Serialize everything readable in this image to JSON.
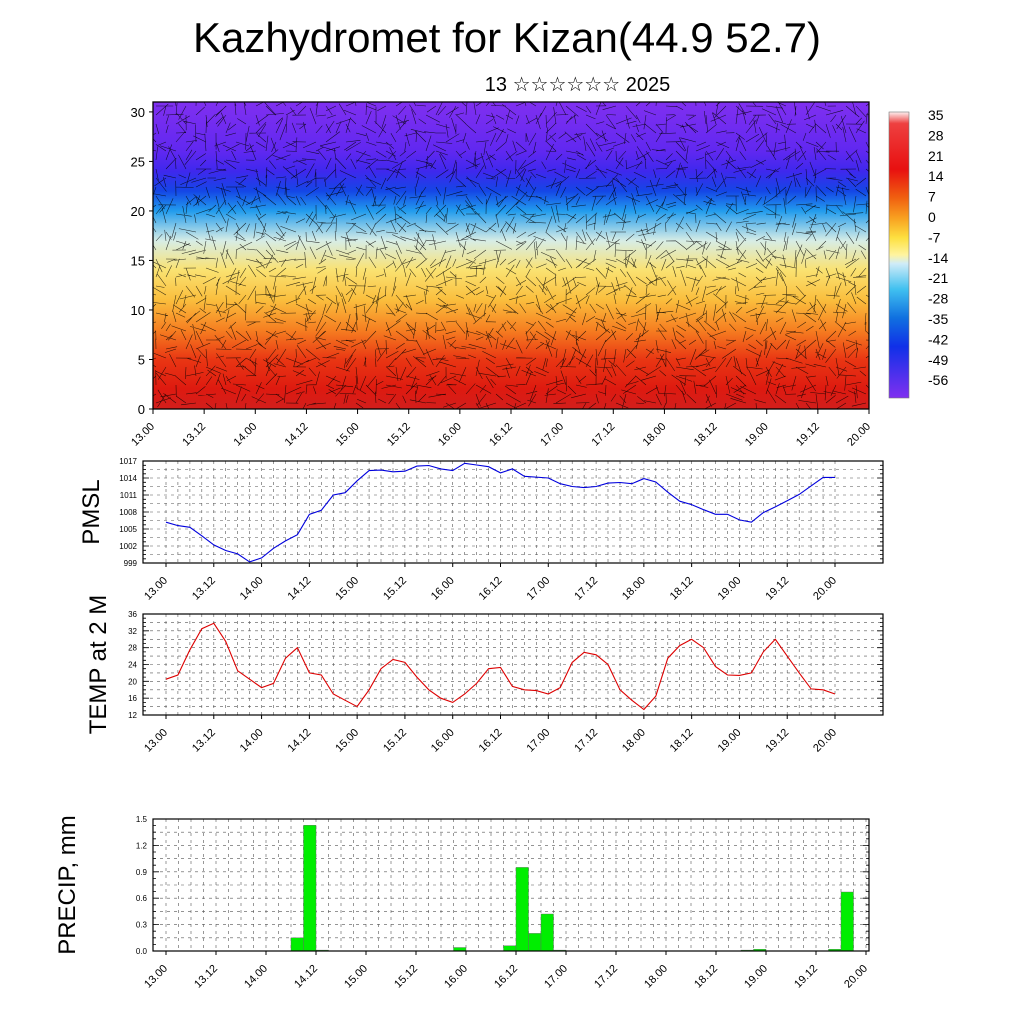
{
  "title": "Kazhydromet for Kizan(44.9 52.7)",
  "subtitle": "13 ☆☆☆☆☆☆ 2025",
  "colors": {
    "pmsl": "#0000dd",
    "temp": "#dd0000",
    "precip": "#00ee00"
  },
  "chart_data": [
    {
      "type": "heatmap",
      "name": "cross-section",
      "xlabel": "",
      "ylabel": "",
      "x_ticks": [
        "13.00",
        "13.12",
        "14.00",
        "14.12",
        "15.00",
        "15.12",
        "16.00",
        "16.12",
        "17.00",
        "17.12",
        "18.00",
        "18.12",
        "19.00",
        "19.12",
        "20.00"
      ],
      "y_ticks": [
        "0",
        "5",
        "10",
        "15",
        "20",
        "25",
        "30"
      ],
      "ylim": [
        0,
        31
      ],
      "colorbar_labels": [
        "35",
        "28",
        "21",
        "14",
        "7",
        "0",
        "-7",
        "-14",
        "-21",
        "-28",
        "-35",
        "-42",
        "-49",
        "-56"
      ],
      "temperature_profile_by_height": {
        "heights": [
          0,
          2,
          5,
          8,
          11,
          14,
          17,
          20,
          22,
          24,
          26,
          28,
          31
        ],
        "values": [
          30,
          27,
          22,
          13,
          3,
          -6,
          -14,
          -30,
          -42,
          -52,
          -55,
          -57,
          -60
        ]
      },
      "overlay": "wind vectors"
    },
    {
      "type": "line",
      "name": "PMSL",
      "ylabel": "PMSL",
      "x_ticks": [
        "13.00",
        "13.12",
        "14.00",
        "14.12",
        "15.00",
        "15.12",
        "16.00",
        "16.12",
        "17.00",
        "17.12",
        "18.00",
        "18.12",
        "19.00",
        "19.12",
        "20.00"
      ],
      "y_ticks": [
        "999",
        "1002",
        "1005",
        "1008",
        "1011",
        "1014",
        "1017"
      ],
      "ylim": [
        999,
        1017
      ],
      "x_hours": [
        0,
        3,
        6,
        9,
        12,
        15,
        18,
        21,
        24,
        27,
        30,
        33,
        36,
        39,
        42,
        45,
        48,
        51,
        54,
        57,
        60,
        63,
        66,
        69,
        72,
        75,
        78,
        81,
        84,
        87,
        90,
        96,
        99,
        102,
        105,
        108,
        111,
        114,
        117,
        120,
        123,
        126,
        129,
        132,
        135,
        138,
        141,
        144,
        147,
        150,
        153,
        156,
        159,
        162,
        165,
        168
      ],
      "values": [
        1006.2,
        1005.6,
        1005.3,
        1003.8,
        1002.2,
        1001.2,
        1000.6,
        999.2,
        999.9,
        1001.6,
        1002.9,
        1004,
        1007.6,
        1008.3,
        1011,
        1011.4,
        1013.5,
        1015.3,
        1015.4,
        1015.1,
        1015.2,
        1016.1,
        1016.2,
        1015.6,
        1015.3,
        1016.6,
        1016.3,
        1016,
        1014.9,
        1015.6,
        1014.3,
        1014,
        1013,
        1012.5,
        1012.3,
        1012.5,
        1013.1,
        1013.2,
        1013,
        1013.9,
        1013.3,
        1011.5,
        1009.9,
        1009.3,
        1008.4,
        1007.6,
        1007.6,
        1006.6,
        1006.2,
        1007.9,
        1008.9,
        1010,
        1011.1,
        1012.6,
        1014.1,
        1014.1
      ]
    },
    {
      "type": "line",
      "name": "TEMP",
      "ylabel": "TEMP at 2 M",
      "x_ticks": [
        "13.00",
        "13.12",
        "14.00",
        "14.12",
        "15.00",
        "15.12",
        "16.00",
        "16.12",
        "17.00",
        "17.12",
        "18.00",
        "18.12",
        "19.00",
        "19.12",
        "20.00"
      ],
      "y_ticks": [
        "12",
        "16",
        "20",
        "24",
        "28",
        "32",
        "36"
      ],
      "ylim": [
        12,
        36
      ],
      "x_hours": [
        0,
        3,
        6,
        9,
        12,
        15,
        18,
        21,
        24,
        27,
        30,
        33,
        36,
        39,
        42,
        45,
        48,
        51,
        54,
        57,
        60,
        63,
        66,
        69,
        72,
        75,
        78,
        81,
        84,
        87,
        90,
        93,
        96,
        99,
        102,
        105,
        108,
        111,
        114,
        117,
        120,
        123,
        126,
        129,
        132,
        135,
        138,
        141,
        144,
        147,
        150,
        153,
        156,
        159,
        162,
        165,
        168
      ],
      "values": [
        20.5,
        21.5,
        27.5,
        32.5,
        33.8,
        29.5,
        22.5,
        20.5,
        18.5,
        19.5,
        25.5,
        28,
        22,
        21.5,
        17,
        15.5,
        14,
        18,
        23,
        25.2,
        24.5,
        21,
        18,
        16,
        15,
        17,
        19.5,
        23,
        23.3,
        18.8,
        18,
        17.8,
        17,
        18.5,
        24.5,
        26.9,
        26.3,
        24,
        18,
        15.5,
        13.3,
        16.5,
        25.5,
        28.5,
        30,
        28,
        23.5,
        21.5,
        21.4,
        22,
        27,
        30,
        26,
        22,
        18.2,
        18,
        17
      ]
    },
    {
      "type": "bar",
      "name": "PRECIP",
      "ylabel": "PRECIP, mm",
      "x_ticks": [
        "13.00",
        "13.12",
        "14.00",
        "14.12",
        "15.00",
        "15.12",
        "16.00",
        "16.12",
        "17.00",
        "17.12",
        "18.00",
        "18.12",
        "19.00",
        "19.12",
        "20.00"
      ],
      "y_ticks": [
        "0.0",
        "0.3",
        "0.6",
        "0.9",
        "1.2",
        "1.5"
      ],
      "ylim": [
        0,
        1.5
      ],
      "x_hours": [
        33,
        36,
        39,
        72,
        84,
        87,
        90,
        93,
        96,
        141,
        144,
        162,
        165
      ],
      "values": [
        0.15,
        1.43,
        0.01,
        0.04,
        0.06,
        0.95,
        0.2,
        0.42,
        0.01,
        0.01,
        0.02,
        0.02,
        0.67
      ]
    }
  ]
}
